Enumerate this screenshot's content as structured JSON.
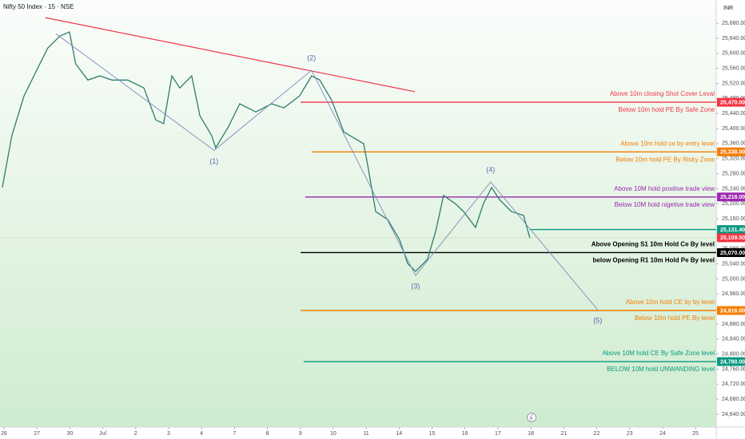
{
  "chart_data": {
    "type": "line",
    "title": "Nifty 50 Index · 15 · NSE",
    "currency": "INR",
    "color": "#2e7d6b",
    "x": [
      -0.05,
      0.24,
      0.61,
      0.97,
      1.33,
      1.7,
      1.99,
      2.18,
      2.55,
      2.91,
      3.28,
      3.76,
      4.25,
      4.61,
      4.85,
      5.1,
      5.34,
      5.7,
      5.95,
      6.31,
      6.43,
      6.8,
      7.16,
      7.65,
      8.13,
      8.5,
      8.98,
      9.34,
      9.59,
      9.95,
      10.32,
      10.92,
      11.04,
      11.29,
      11.65,
      12.01,
      12.26,
      12.5,
      12.86,
      13.11,
      13.35,
      13.71,
      13.96,
      14.32,
      14.56,
      14.81,
      15.05,
      15.41,
      15.78,
      15.97
    ],
    "values": [
      25243,
      25381,
      25487,
      25551,
      25614,
      25646,
      25657,
      25572,
      25529,
      25540,
      25529,
      25529,
      25508,
      25423,
      25413,
      25540,
      25508,
      25540,
      25434,
      25381,
      25349,
      25402,
      25466,
      25444,
      25466,
      25455,
      25487,
      25540,
      25529,
      25476,
      25391,
      25360,
      25306,
      25179,
      25158,
      25105,
      25041,
      25020,
      25052,
      25126,
      25222,
      25200,
      25179,
      25137,
      25200,
      25243,
      25211,
      25179,
      25169,
      25109.5
    ],
    "xlim": [
      -0.12,
      21.63
    ],
    "xticks": [
      {
        "value": 0,
        "label": "26"
      },
      {
        "value": 1,
        "label": "27"
      },
      {
        "value": 2,
        "label": "30"
      },
      {
        "value": 3,
        "label": "Jul"
      },
      {
        "value": 4,
        "label": "2"
      },
      {
        "value": 5,
        "label": "3"
      },
      {
        "value": 6,
        "label": "4"
      },
      {
        "value": 7,
        "label": "7"
      },
      {
        "value": 8,
        "label": "8"
      },
      {
        "value": 9,
        "label": "9"
      },
      {
        "value": 10,
        "label": "10"
      },
      {
        "value": 11,
        "label": "11"
      },
      {
        "value": 12,
        "label": "14"
      },
      {
        "value": 13,
        "label": "15"
      },
      {
        "value": 14,
        "label": "16"
      },
      {
        "value": 15,
        "label": "17"
      },
      {
        "value": 16,
        "label": "18"
      },
      {
        "value": 17,
        "label": "21"
      },
      {
        "value": 18,
        "label": "22"
      },
      {
        "value": 19,
        "label": "23"
      },
      {
        "value": 20,
        "label": "24"
      },
      {
        "value": 21,
        "label": "25"
      }
    ],
    "ylim": [
      24606,
      25742
    ],
    "yticks": [
      {
        "value": 24640,
        "label": "24,640.00"
      },
      {
        "value": 24680,
        "label": "24,680.00"
      },
      {
        "value": 24720,
        "label": "24,720.00"
      },
      {
        "value": 24760,
        "label": "24,760.00"
      },
      {
        "value": 24800,
        "label": "24,800.00"
      },
      {
        "value": 24840,
        "label": "24,840.00"
      },
      {
        "value": 24880,
        "label": "24,880.00"
      },
      {
        "value": 24920,
        "label": "24,920.00"
      },
      {
        "value": 24960,
        "label": "24,960.00"
      },
      {
        "value": 25000,
        "label": "25,000.00"
      },
      {
        "value": 25040,
        "label": "25,040.00"
      },
      {
        "value": 25080,
        "label": "25,080.00"
      },
      {
        "value": 25120,
        "label": "25,120.00"
      },
      {
        "value": 25160,
        "label": "25,160.00"
      },
      {
        "value": 25200,
        "label": "25,200.00"
      },
      {
        "value": 25240,
        "label": "25,240.00"
      },
      {
        "value": 25280,
        "label": "25,280.00"
      },
      {
        "value": 25320,
        "label": "25,320.00"
      },
      {
        "value": 25360,
        "label": "25,360.00"
      },
      {
        "value": 25400,
        "label": "25,400.00"
      },
      {
        "value": 25440,
        "label": "25,440.00"
      },
      {
        "value": 25480,
        "label": "25,480.00"
      },
      {
        "value": 25520,
        "label": "25,520.00"
      },
      {
        "value": 25560,
        "label": "25,560.00"
      },
      {
        "value": 25600,
        "label": "25,600.00"
      },
      {
        "value": 25640,
        "label": "25,640.00"
      },
      {
        "value": 25680,
        "label": "25,680.00"
      }
    ],
    "trend_line": {
      "x": [
        1.26,
        12.48
      ],
      "values": [
        25695,
        25498
      ],
      "color": "#f23645"
    },
    "waves": {
      "x": [
        1.58,
        6.38,
        9.34,
        12.5,
        14.78,
        18.03
      ],
      "values": [
        25652,
        25342,
        25555,
        25009,
        25258,
        24918
      ],
      "labels": [
        null,
        "(1)",
        "(2)",
        "(3)",
        "(4)",
        "(5)"
      ],
      "color": "#7f89bf"
    },
    "levels": [
      {
        "value": 25470,
        "label": "25,470.00",
        "color": "#f23645",
        "x_start": 9.01,
        "notes": [
          "Above 10m closing Shot Cover Leval",
          "Below 10m hold PE By Safe Zone"
        ]
      },
      {
        "value": 25338,
        "label": "25,338.00",
        "color": "#f57c00",
        "x_start": 9.34,
        "notes": [
          "Above 10m hold ce by entry level",
          "Below 10m hold PE By Risky Zone"
        ]
      },
      {
        "value": 25218,
        "label": "25,218.00",
        "color": "#9c27b0",
        "x_start": 9.15,
        "notes": [
          "Above 10M hold positive trade view",
          "Below 10M hold nigetive trade view"
        ]
      },
      {
        "value": 25131.4,
        "label": "25,131.40",
        "color": "#089981",
        "x_start": 15.97,
        "notes": []
      },
      {
        "value": 25070,
        "label": "25,070.00",
        "color": "#000000",
        "x_start": 9.01,
        "notes": [
          "Above Opening S1 10m Hold Ce By level",
          "below Opening R1 10m Hold Pe By level"
        ]
      },
      {
        "value": 24916,
        "label": "24,916.00",
        "color": "#f57c00",
        "x_start": 9.01,
        "notes": [
          "Above 10m hold CE by by level",
          "Below 10m hold PE By level"
        ]
      },
      {
        "value": 24780,
        "label": "24,780.00",
        "color": "#089981",
        "x_start": 9.1,
        "notes": [
          "Above 10M hold CE By Safe Zone level",
          "BELOW 10M hold UNWANDING level"
        ]
      }
    ],
    "last_price": {
      "value": 25109.5,
      "label": "25,109.50",
      "color": "#f23645"
    }
  }
}
